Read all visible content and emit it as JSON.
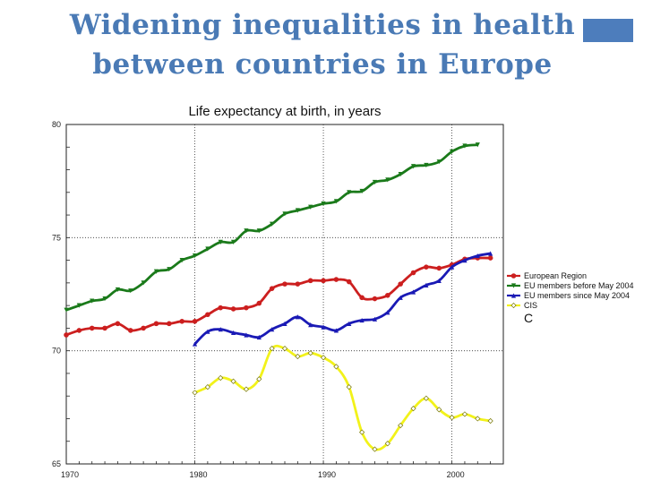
{
  "slide": {
    "title_line1": "Widening inequalities in health",
    "title_line2": "between countries in Europe",
    "accent_color": "#4d7dbc"
  },
  "chart_data": {
    "type": "line",
    "title": "Life expectancy at birth, in years",
    "xlabel": "",
    "ylabel": "",
    "xlim": [
      1970,
      2004
    ],
    "ylim": [
      65,
      80
    ],
    "x_ticks": [
      1970,
      1980,
      1990,
      2000
    ],
    "y_ticks": [
      65,
      70,
      75,
      80
    ],
    "grid": "dotted",
    "legend_position": "right",
    "legend_extra_label": "C",
    "series": [
      {
        "name": "European Region",
        "color": "#cc1f1f",
        "marker": "circle",
        "x": [
          1970,
          1971,
          1972,
          1973,
          1974,
          1975,
          1976,
          1977,
          1978,
          1979,
          1980,
          1981,
          1982,
          1983,
          1984,
          1985,
          1986,
          1987,
          1988,
          1989,
          1990,
          1991,
          1992,
          1993,
          1994,
          1995,
          1996,
          1997,
          1998,
          1999,
          2000,
          2001,
          2002,
          2003
        ],
        "y": [
          70.7,
          70.9,
          71.0,
          71.0,
          71.2,
          70.9,
          71.0,
          71.2,
          71.2,
          71.3,
          71.3,
          71.6,
          71.9,
          71.85,
          71.9,
          72.1,
          72.75,
          72.95,
          72.95,
          73.1,
          73.1,
          73.15,
          73.05,
          72.35,
          72.3,
          72.45,
          72.95,
          73.45,
          73.7,
          73.65,
          73.8,
          74.05,
          74.1,
          74.1
        ]
      },
      {
        "name": "EU members before May 2004",
        "color": "#1a7a1a",
        "marker": "triangle-down",
        "x": [
          1970,
          1971,
          1972,
          1973,
          1974,
          1975,
          1976,
          1977,
          1978,
          1979,
          1980,
          1981,
          1982,
          1983,
          1984,
          1985,
          1986,
          1987,
          1988,
          1989,
          1990,
          1991,
          1992,
          1993,
          1994,
          1995,
          1996,
          1997,
          1998,
          1999,
          2000,
          2001,
          2002
        ],
        "y": [
          71.8,
          72.0,
          72.2,
          72.3,
          72.7,
          72.65,
          73.0,
          73.5,
          73.6,
          74.0,
          74.2,
          74.5,
          74.8,
          74.8,
          75.3,
          75.3,
          75.6,
          76.05,
          76.2,
          76.35,
          76.5,
          76.6,
          77.0,
          77.05,
          77.45,
          77.55,
          77.8,
          78.15,
          78.2,
          78.35,
          78.8,
          79.05,
          79.1
        ]
      },
      {
        "name": "EU members since May 2004",
        "color": "#1a1ab5",
        "marker": "triangle-up",
        "x": [
          1980,
          1981,
          1982,
          1983,
          1984,
          1985,
          1986,
          1987,
          1988,
          1989,
          1990,
          1991,
          1992,
          1993,
          1994,
          1995,
          1996,
          1997,
          1998,
          1999,
          2000,
          2001,
          2002,
          2003
        ],
        "y": [
          70.3,
          70.85,
          70.95,
          70.8,
          70.7,
          70.6,
          70.95,
          71.2,
          71.5,
          71.15,
          71.05,
          70.9,
          71.2,
          71.35,
          71.4,
          71.7,
          72.35,
          72.6,
          72.9,
          73.1,
          73.7,
          74.0,
          74.2,
          74.3
        ]
      },
      {
        "name": "CIS",
        "color": "#f2f21a",
        "marker": "diamond",
        "x": [
          1980,
          1981,
          1982,
          1983,
          1984,
          1985,
          1986,
          1987,
          1988,
          1989,
          1990,
          1991,
          1992,
          1993,
          1994,
          1995,
          1996,
          1997,
          1998,
          1999,
          2000,
          2001,
          2002,
          2003
        ],
        "y": [
          68.15,
          68.4,
          68.8,
          68.65,
          68.3,
          68.75,
          70.1,
          70.1,
          69.75,
          69.9,
          69.7,
          69.3,
          68.4,
          66.4,
          65.65,
          65.9,
          66.7,
          67.45,
          67.9,
          67.4,
          67.05,
          67.2,
          67.0,
          66.9
        ]
      }
    ]
  }
}
